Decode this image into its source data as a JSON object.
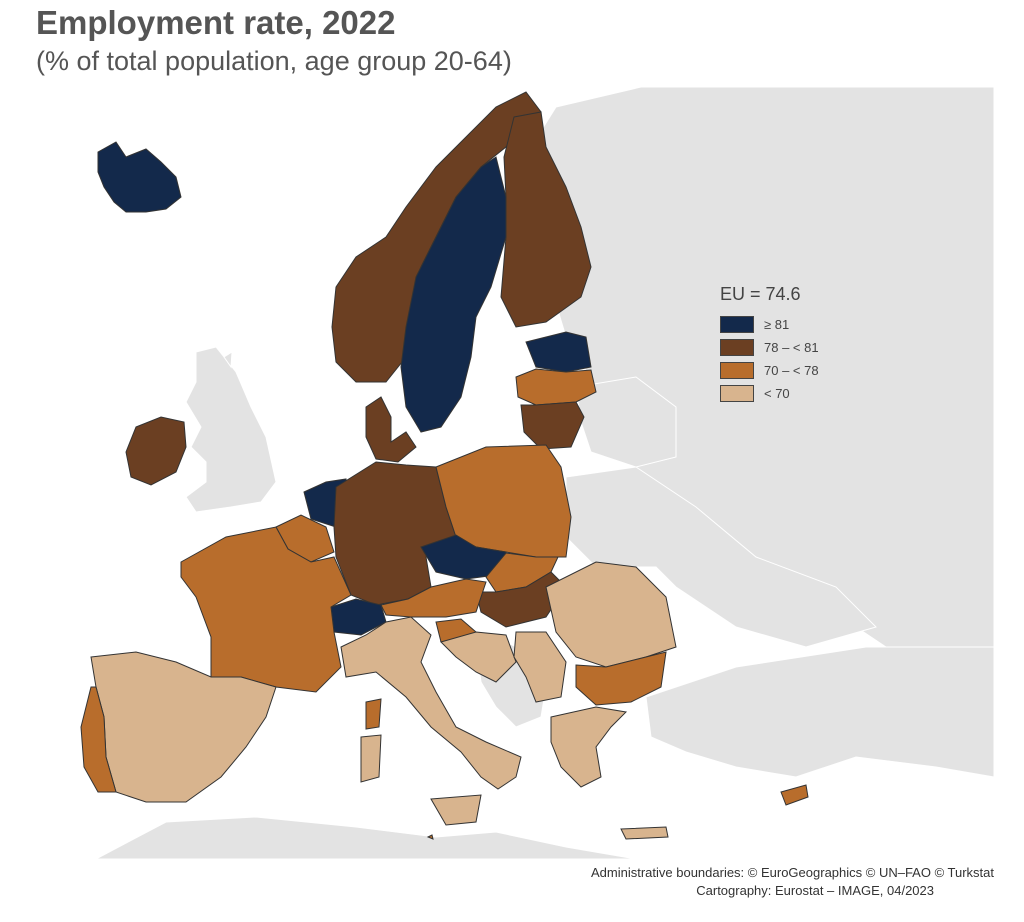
{
  "title": "Employment rate, 2022",
  "subtitle": "(% of total population, age group 20-64)",
  "legend": {
    "title": "EU = 74.6",
    "items": [
      {
        "label": "≥ 81",
        "color": "#13294b"
      },
      {
        "label": "78 – < 81",
        "color": "#6b3f22"
      },
      {
        "label": "70 – < 78",
        "color": "#b86d2c"
      },
      {
        "label": "< 70",
        "color": "#d8b48e"
      }
    ]
  },
  "colors": {
    "sea": "#ffffff",
    "non_eu": "#e3e3e3",
    "border": "#333333"
  },
  "regions": {
    "iceland": "≥ 81",
    "norway": "78 – < 81",
    "sweden": "≥ 81",
    "finland": "78 – < 81",
    "estonia": "≥ 81",
    "latvia": "70 – < 78",
    "lithuania": "78 – < 81",
    "ireland": "78 – < 81",
    "netherlands": "≥ 81",
    "belgium": "70 – < 78",
    "denmark": "78 – < 81",
    "germany": "78 – < 81",
    "poland": "70 – < 78",
    "czechia": "≥ 81",
    "slovakia": "70 – < 78",
    "hungary": "78 – < 81",
    "austria": "70 – < 78",
    "switzerland": "≥ 81",
    "france": "70 – < 78",
    "spain": "< 70",
    "portugal": "70 – < 78",
    "italy": "< 70",
    "slovenia": "70 – < 78",
    "croatia": "< 70",
    "serbia": "< 70",
    "romania": "< 70",
    "bulgaria": "70 – < 78",
    "greece": "< 70",
    "cyprus": "70 – < 78",
    "malta": "70 – < 78"
  },
  "credits": {
    "line1": "Administrative boundaries: © EuroGeographics © UN–FAO © Turkstat",
    "line2": "Cartography: Eurostat – IMAGE, 04/2023"
  }
}
